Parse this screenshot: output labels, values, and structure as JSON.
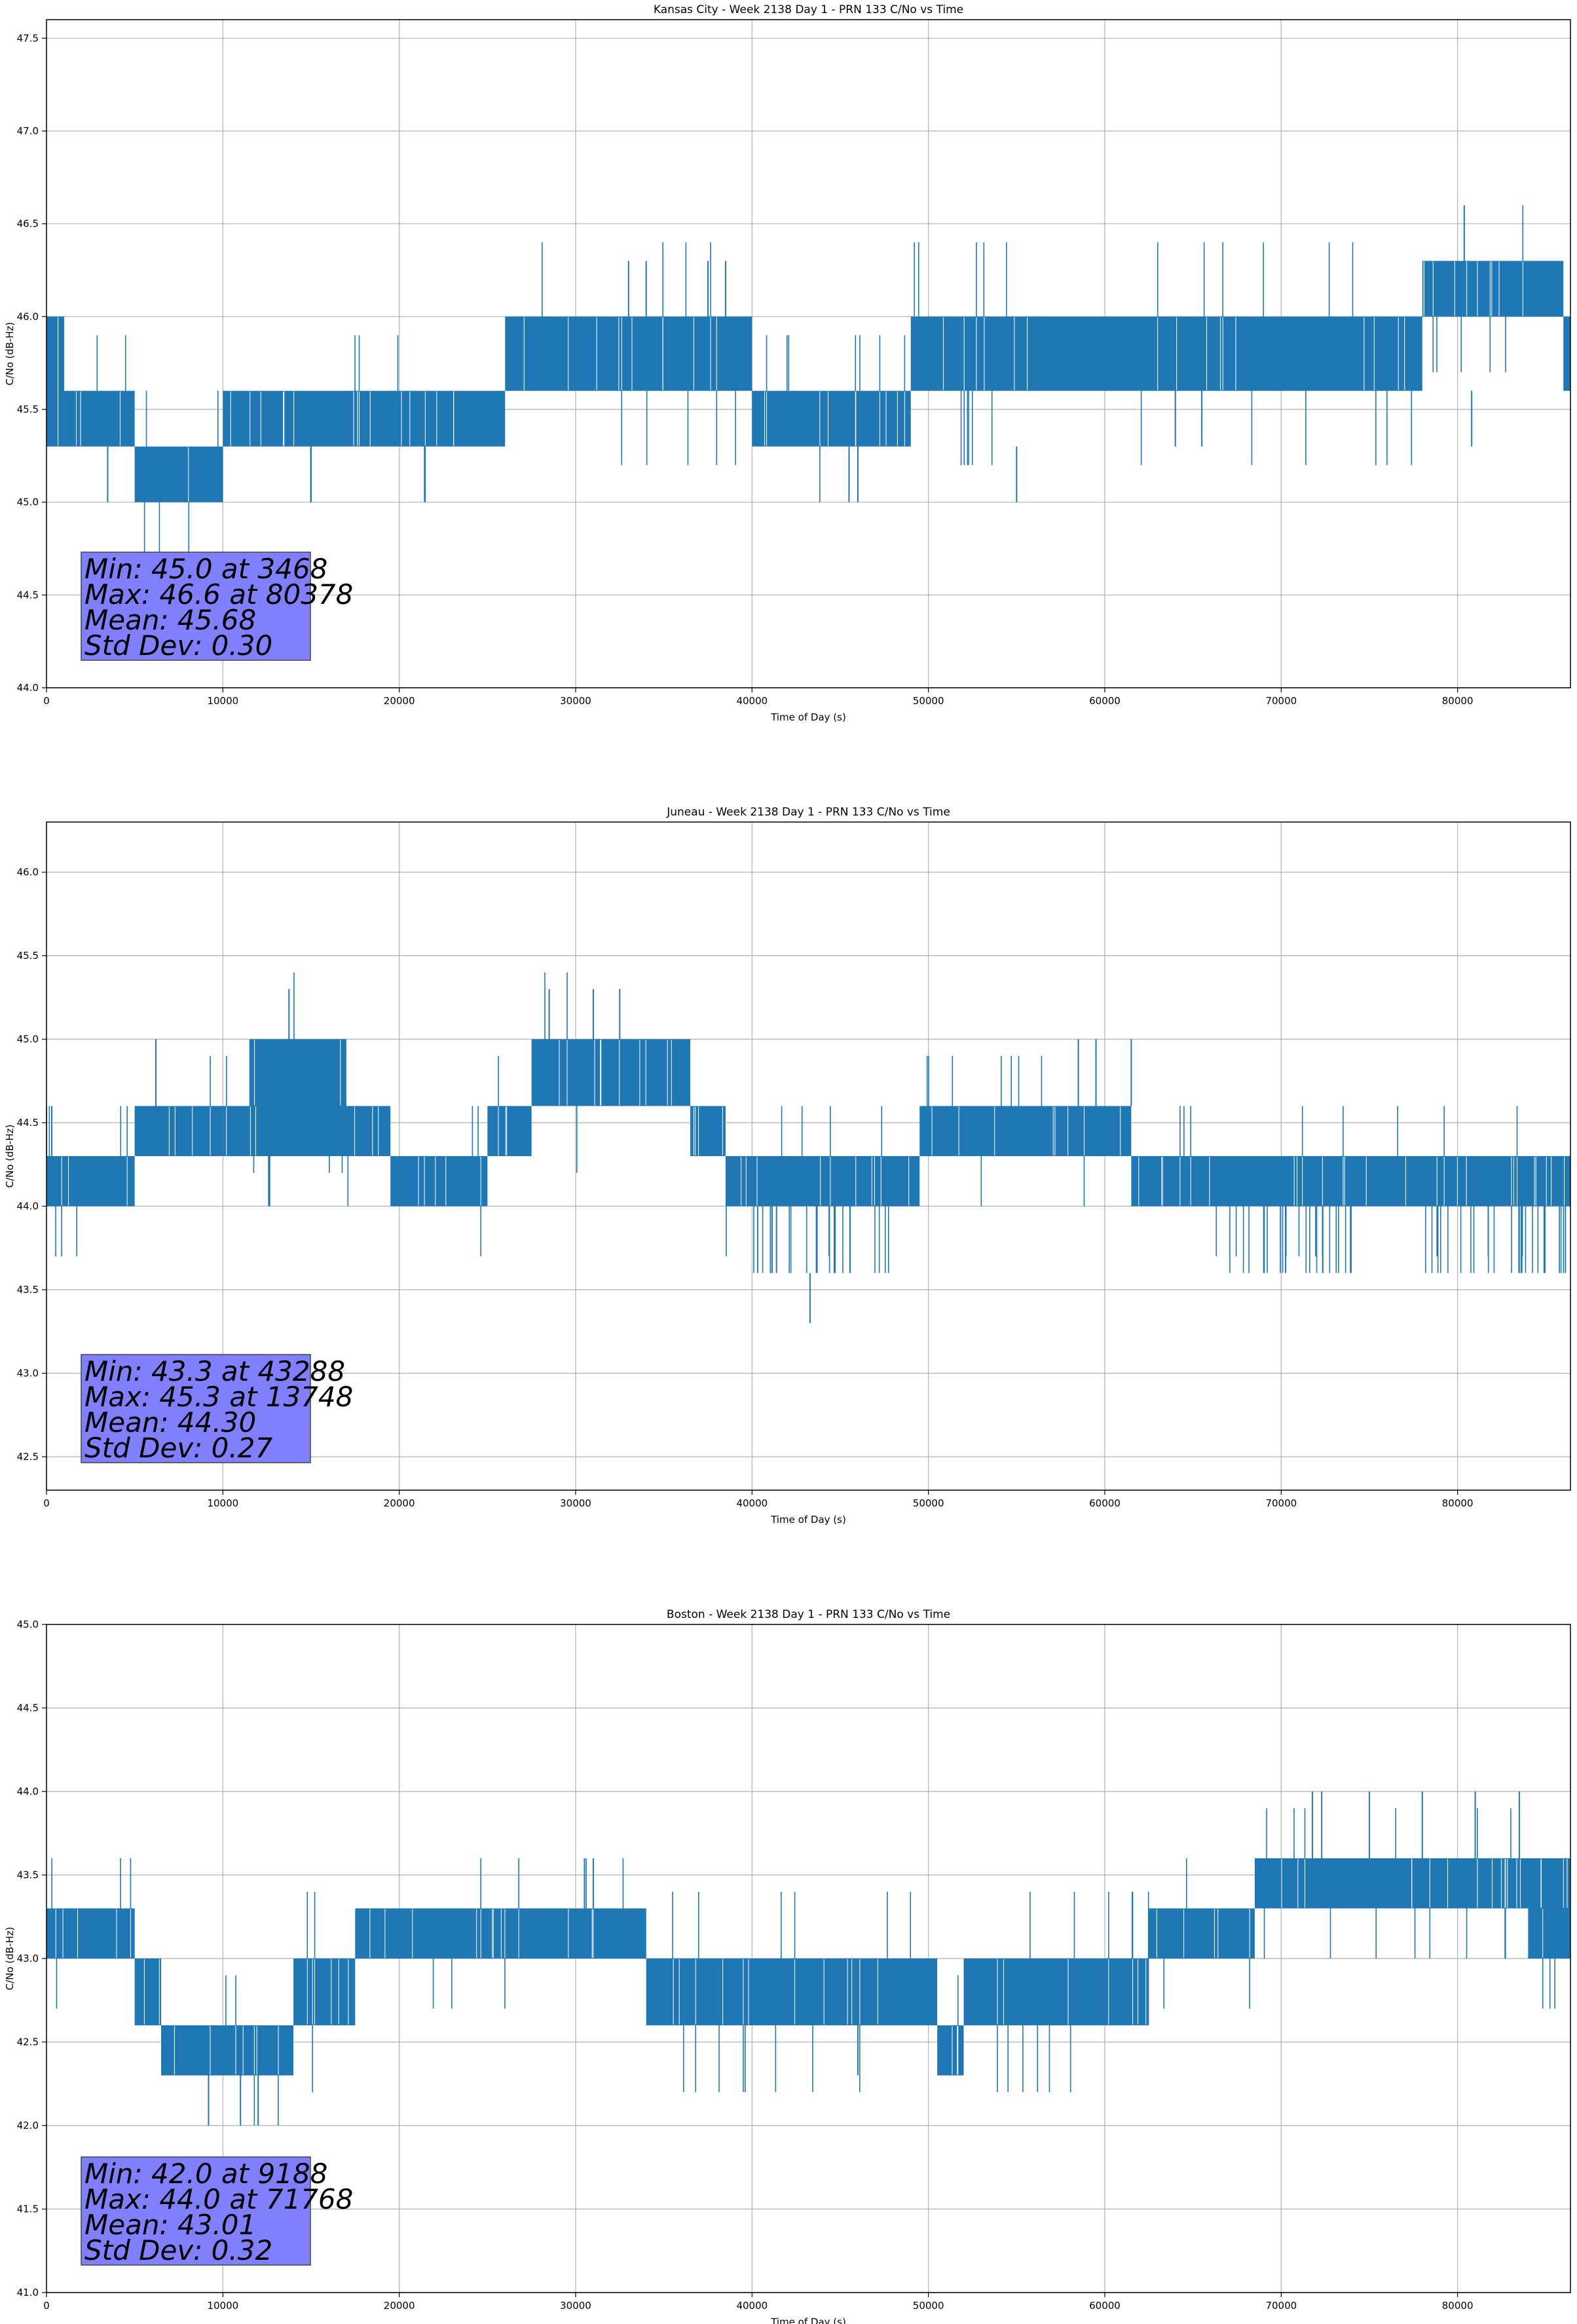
{
  "chart_data": [
    {
      "type": "line",
      "title": "Kansas City - Week 2138 Day 1 - PRN 133 C/No vs Time",
      "xlabel": "Time of Day (s)",
      "ylabel": "C/No (dB-Hz)",
      "xlim": [
        0,
        86400
      ],
      "ylim": [
        44.0,
        47.6
      ],
      "xticks": [
        0,
        10000,
        20000,
        30000,
        40000,
        50000,
        60000,
        70000,
        80000
      ],
      "yticks": [
        44.0,
        44.5,
        45.0,
        45.5,
        46.0,
        46.5,
        47.0,
        47.5
      ],
      "grid": true,
      "color": "#1f77b4",
      "segments": [
        {
          "x0": 0,
          "x1": 1000,
          "lo": 45.3,
          "hi": 46.0
        },
        {
          "x0": 1000,
          "x1": 5000,
          "lo": 45.3,
          "hi": 45.6
        },
        {
          "x0": 5000,
          "x1": 10000,
          "lo": 45.0,
          "hi": 45.3
        },
        {
          "x0": 10000,
          "x1": 15000,
          "lo": 45.3,
          "hi": 45.6
        },
        {
          "x0": 15000,
          "x1": 22000,
          "lo": 45.3,
          "hi": 45.6
        },
        {
          "x0": 22000,
          "x1": 26000,
          "lo": 45.3,
          "hi": 45.6
        },
        {
          "x0": 26000,
          "x1": 30000,
          "lo": 45.6,
          "hi": 46.0
        },
        {
          "x0": 30000,
          "x1": 40000,
          "lo": 45.6,
          "hi": 46.0
        },
        {
          "x0": 40000,
          "x1": 49000,
          "lo": 45.3,
          "hi": 45.6
        },
        {
          "x0": 49000,
          "x1": 60000,
          "lo": 45.6,
          "hi": 46.0
        },
        {
          "x0": 60000,
          "x1": 78000,
          "lo": 45.6,
          "hi": 46.0
        },
        {
          "x0": 78000,
          "x1": 86000,
          "lo": 46.0,
          "hi": 46.3
        },
        {
          "x0": 86000,
          "x1": 86400,
          "lo": 45.6,
          "hi": 46.0
        }
      ],
      "spikes": [
        {
          "x": 3468,
          "lo": 45.0,
          "hi": 45.3
        },
        {
          "x": 15000,
          "lo": 45.0,
          "hi": 45.3
        },
        {
          "x": 33000,
          "lo": 46.0,
          "hi": 46.3
        },
        {
          "x": 34000,
          "lo": 46.0,
          "hi": 46.3
        },
        {
          "x": 37500,
          "lo": 46.0,
          "hi": 46.3
        },
        {
          "x": 38500,
          "lo": 46.0,
          "hi": 46.3
        },
        {
          "x": 45500,
          "lo": 45.0,
          "hi": 45.3
        },
        {
          "x": 46000,
          "lo": 45.0,
          "hi": 45.3
        },
        {
          "x": 55000,
          "lo": 45.0,
          "hi": 45.3
        },
        {
          "x": 64000,
          "lo": 45.3,
          "hi": 45.6
        },
        {
          "x": 65500,
          "lo": 45.3,
          "hi": 45.6
        },
        {
          "x": 80378,
          "lo": 46.3,
          "hi": 46.6
        },
        {
          "x": 80800,
          "lo": 45.3,
          "hi": 45.6
        }
      ],
      "stats": {
        "min": "Min: 45.0 at 3468",
        "max": "Max: 46.6 at 80378",
        "mean": "Mean: 45.68",
        "std": "Std Dev: 0.30"
      }
    },
    {
      "type": "line",
      "title": "Juneau - Week 2138 Day 1 - PRN 133 C/No vs Time",
      "xlabel": "Time of Day (s)",
      "ylabel": "C/No (dB-Hz)",
      "xlim": [
        0,
        86400
      ],
      "ylim": [
        42.3,
        46.3
      ],
      "xticks": [
        0,
        10000,
        20000,
        30000,
        40000,
        50000,
        60000,
        70000,
        80000
      ],
      "yticks": [
        42.5,
        43.0,
        43.5,
        44.0,
        44.5,
        45.0,
        45.5,
        46.0
      ],
      "grid": true,
      "color": "#1f77b4",
      "segments": [
        {
          "x0": 0,
          "x1": 5000,
          "lo": 44.0,
          "hi": 44.3
        },
        {
          "x0": 5000,
          "x1": 10000,
          "lo": 44.3,
          "hi": 44.6
        },
        {
          "x0": 10000,
          "x1": 19500,
          "lo": 44.3,
          "hi": 44.6
        },
        {
          "x0": 11500,
          "x1": 17000,
          "lo": 44.6,
          "hi": 45.0
        },
        {
          "x0": 19500,
          "x1": 25000,
          "lo": 44.0,
          "hi": 44.3
        },
        {
          "x0": 25000,
          "x1": 27500,
          "lo": 44.3,
          "hi": 44.6
        },
        {
          "x0": 27500,
          "x1": 36500,
          "lo": 44.6,
          "hi": 45.0
        },
        {
          "x0": 36500,
          "x1": 38500,
          "lo": 44.3,
          "hi": 44.6
        },
        {
          "x0": 38500,
          "x1": 49500,
          "lo": 44.0,
          "hi": 44.3
        },
        {
          "x0": 49500,
          "x1": 61500,
          "lo": 44.3,
          "hi": 44.6
        },
        {
          "x0": 61500,
          "x1": 86400,
          "lo": 44.0,
          "hi": 44.3
        }
      ],
      "spikes": [
        {
          "x": 300,
          "lo": 44.3,
          "hi": 44.6
        },
        {
          "x": 6200,
          "lo": 44.6,
          "hi": 45.0
        },
        {
          "x": 13748,
          "lo": 45.0,
          "hi": 45.3
        },
        {
          "x": 28500,
          "lo": 45.0,
          "hi": 45.3
        },
        {
          "x": 31000,
          "lo": 45.0,
          "hi": 45.3
        },
        {
          "x": 32500,
          "lo": 45.0,
          "hi": 45.3
        },
        {
          "x": 43288,
          "lo": 43.3,
          "hi": 43.6
        },
        {
          "x": 58500,
          "lo": 44.6,
          "hi": 45.0
        },
        {
          "x": 59500,
          "lo": 44.6,
          "hi": 45.0
        },
        {
          "x": 61500,
          "lo": 44.6,
          "hi": 45.0
        }
      ],
      "dips": [
        {
          "x0": 40000,
          "x1": 48000,
          "lo": 43.6,
          "hi": 44.0
        },
        {
          "x0": 67000,
          "x1": 74000,
          "lo": 43.6,
          "hi": 44.0
        },
        {
          "x0": 78000,
          "x1": 86400,
          "lo": 43.6,
          "hi": 44.0
        }
      ],
      "stats": {
        "min": "Min: 43.3 at 43288",
        "max": "Max: 45.3 at 13748",
        "mean": "Mean: 44.30",
        "std": "Std Dev: 0.27"
      }
    },
    {
      "type": "line",
      "title": "Boston - Week 2138 Day 1 - PRN 133 C/No vs Time",
      "xlabel": "Time of Day (s)",
      "ylabel": "C/No (dB-Hz)",
      "xlim": [
        0,
        86400
      ],
      "ylim": [
        41.0,
        45.0
      ],
      "xticks": [
        0,
        10000,
        20000,
        30000,
        40000,
        50000,
        60000,
        70000,
        80000
      ],
      "yticks": [
        41.0,
        41.5,
        42.0,
        42.5,
        43.0,
        43.5,
        44.0,
        44.5,
        45.0
      ],
      "grid": true,
      "color": "#1f77b4",
      "segments": [
        {
          "x0": 0,
          "x1": 5000,
          "lo": 43.0,
          "hi": 43.3
        },
        {
          "x0": 5000,
          "x1": 6500,
          "lo": 42.6,
          "hi": 43.0
        },
        {
          "x0": 6500,
          "x1": 14000,
          "lo": 42.3,
          "hi": 42.6
        },
        {
          "x0": 14000,
          "x1": 17500,
          "lo": 42.6,
          "hi": 43.0
        },
        {
          "x0": 17500,
          "x1": 34000,
          "lo": 43.0,
          "hi": 43.3
        },
        {
          "x0": 34000,
          "x1": 50500,
          "lo": 42.6,
          "hi": 43.0
        },
        {
          "x0": 50500,
          "x1": 52000,
          "lo": 42.3,
          "hi": 42.6
        },
        {
          "x0": 52000,
          "x1": 62500,
          "lo": 42.6,
          "hi": 43.0
        },
        {
          "x0": 62500,
          "x1": 68500,
          "lo": 43.0,
          "hi": 43.3
        },
        {
          "x0": 68500,
          "x1": 86400,
          "lo": 43.3,
          "hi": 43.6
        },
        {
          "x0": 84000,
          "x1": 86400,
          "lo": 43.0,
          "hi": 43.3
        }
      ],
      "spikes": [
        {
          "x": 9188,
          "lo": 42.0,
          "hi": 42.3
        },
        {
          "x": 11000,
          "lo": 42.0,
          "hi": 42.3
        },
        {
          "x": 12000,
          "lo": 42.0,
          "hi": 42.3
        },
        {
          "x": 30500,
          "lo": 43.3,
          "hi": 43.6
        },
        {
          "x": 31000,
          "lo": 43.3,
          "hi": 43.6
        },
        {
          "x": 46000,
          "lo": 42.3,
          "hi": 42.6
        },
        {
          "x": 71768,
          "lo": 43.6,
          "hi": 44.0
        },
        {
          "x": 72300,
          "lo": 43.6,
          "hi": 44.0
        },
        {
          "x": 75000,
          "lo": 43.6,
          "hi": 44.0
        },
        {
          "x": 78000,
          "lo": 43.6,
          "hi": 44.0
        },
        {
          "x": 81000,
          "lo": 43.6,
          "hi": 44.0
        },
        {
          "x": 83500,
          "lo": 43.6,
          "hi": 44.0
        }
      ],
      "stats": {
        "min": "Min: 42.0 at 9188",
        "max": "Max: 44.0 at 71768",
        "mean": "Mean: 43.01",
        "std": "Std Dev: 0.32"
      }
    }
  ]
}
